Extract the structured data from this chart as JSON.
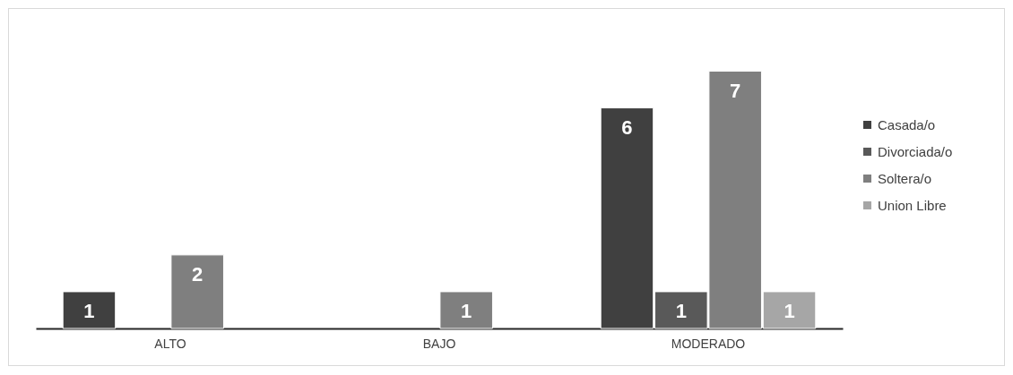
{
  "chart_data": {
    "type": "bar",
    "categories": [
      "ALTO",
      "BAJO",
      "MODERADO"
    ],
    "series": [
      {
        "name": "Casada/o",
        "color": "#404040",
        "values": [
          1,
          null,
          6
        ]
      },
      {
        "name": "Divorciada/o",
        "color": "#595959",
        "values": [
          null,
          null,
          1
        ]
      },
      {
        "name": "Soltera/o",
        "color": "#7f7f7f",
        "values": [
          2,
          1,
          7
        ]
      },
      {
        "name": "Union Libre",
        "color": "#a6a6a6",
        "values": [
          null,
          null,
          1
        ]
      }
    ],
    "data_labels": true,
    "legend": "right"
  }
}
